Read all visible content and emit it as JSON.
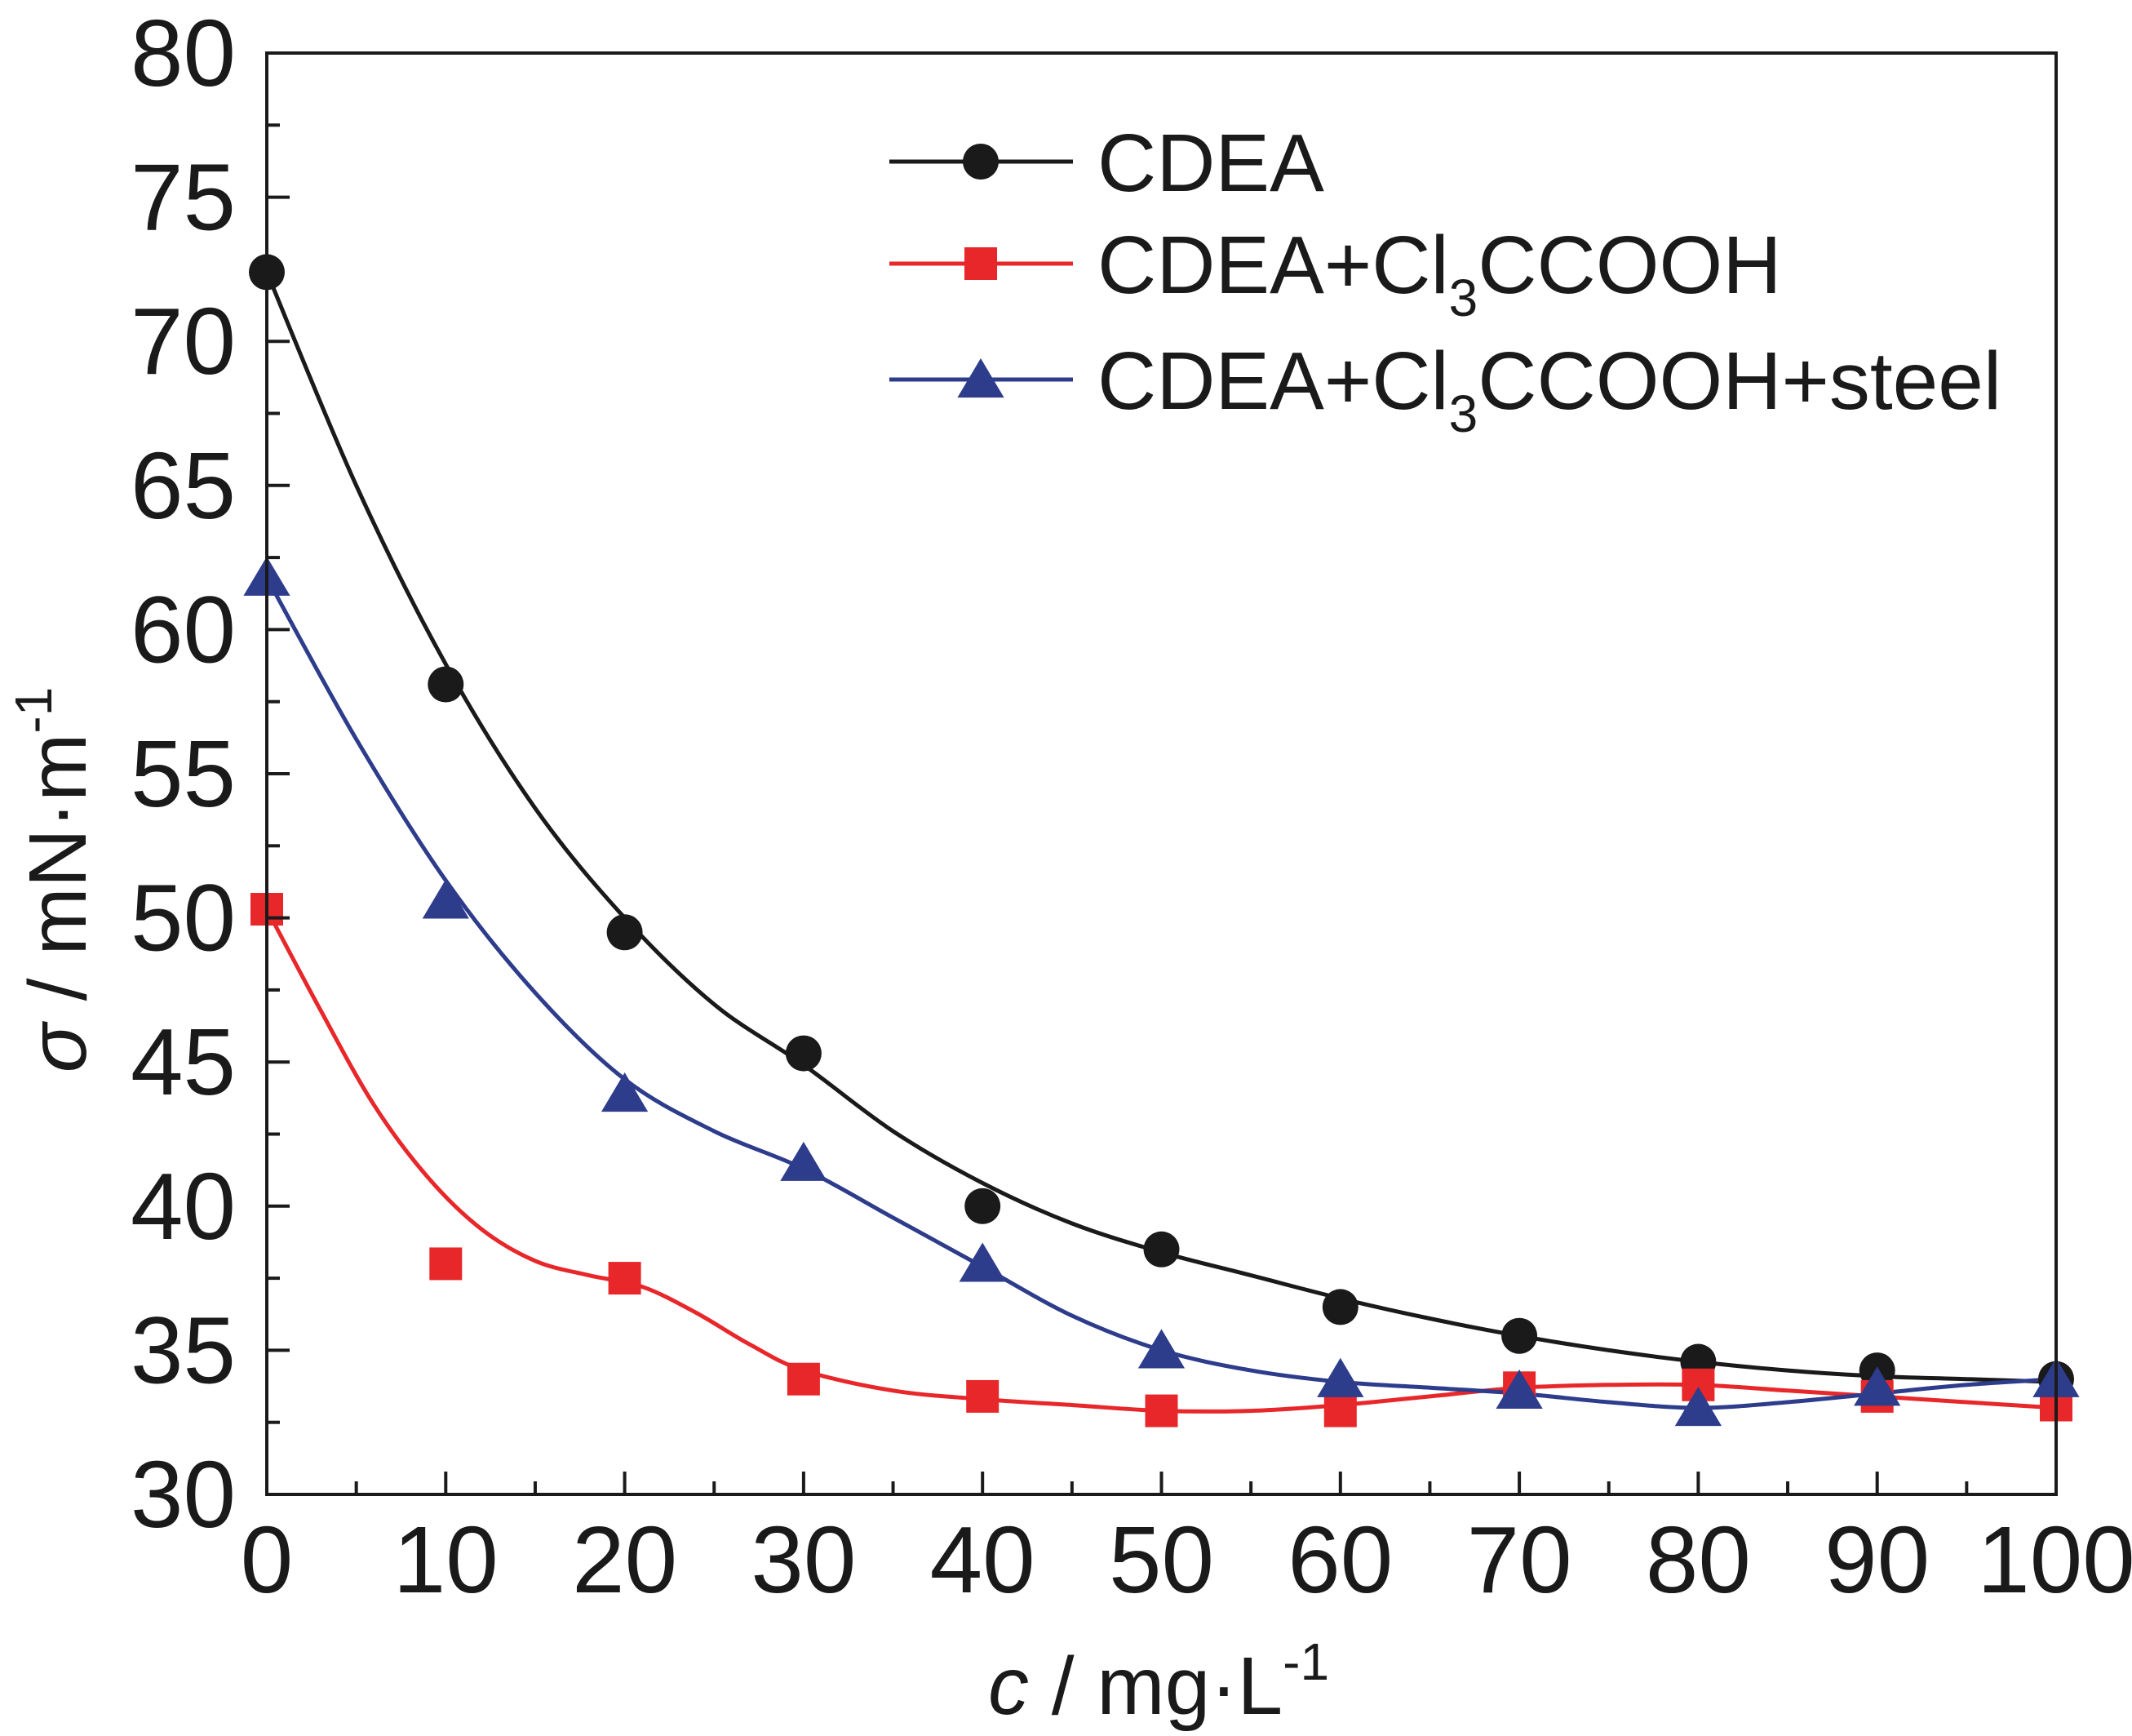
{
  "chart_data": {
    "type": "line",
    "xlabel": {
      "symbol": "c",
      "unit": " / mg·L",
      "exponent": "-1"
    },
    "ylabel": {
      "symbol": "σ",
      "unit": " / mN·m",
      "exponent": "-1"
    },
    "xlim": [
      0,
      100
    ],
    "ylim": [
      30,
      80
    ],
    "x_ticks": [
      0,
      10,
      20,
      30,
      40,
      50,
      60,
      70,
      80,
      90,
      100
    ],
    "y_ticks": [
      30,
      35,
      40,
      45,
      50,
      55,
      60,
      65,
      70,
      75,
      80
    ],
    "x": [
      0,
      10,
      20,
      30,
      40,
      50,
      60,
      70,
      80,
      90,
      100
    ],
    "series": [
      {
        "name": "CDEA",
        "legend": {
          "base": "CDEA",
          "sub": "",
          "tail": ""
        },
        "color": "#1a1a1a",
        "marker": "circle",
        "values": [
          72.4,
          58.1,
          49.5,
          45.3,
          40.0,
          38.5,
          36.5,
          35.5,
          34.6,
          34.3,
          34.0
        ],
        "fit": [
          [
            0,
            72.4
          ],
          [
            5,
            65.0
          ],
          [
            10,
            58.8
          ],
          [
            15,
            53.8
          ],
          [
            20,
            50.0
          ],
          [
            25,
            47.0
          ],
          [
            30,
            44.9
          ],
          [
            35,
            42.6
          ],
          [
            40,
            40.8
          ],
          [
            45,
            39.4
          ],
          [
            50,
            38.4
          ],
          [
            55,
            37.6
          ],
          [
            60,
            36.8
          ],
          [
            65,
            36.1
          ],
          [
            70,
            35.5
          ],
          [
            75,
            35.0
          ],
          [
            80,
            34.6
          ],
          [
            85,
            34.3
          ],
          [
            90,
            34.1
          ],
          [
            95,
            34.0
          ],
          [
            100,
            33.9
          ]
        ]
      },
      {
        "name": "CDEA+Cl3CCOOH",
        "legend": {
          "base": "CDEA+Cl",
          "sub": "3",
          "tail": "CCOOH"
        },
        "color": "#e8272a",
        "marker": "square",
        "values": [
          50.3,
          38.0,
          37.5,
          34.0,
          33.4,
          32.9,
          32.9,
          33.7,
          33.8,
          33.4,
          33.1
        ],
        "fit": [
          [
            0,
            50.3
          ],
          [
            3,
            46.8
          ],
          [
            6,
            43.5
          ],
          [
            9,
            41.0
          ],
          [
            12,
            39.2
          ],
          [
            15,
            38.1
          ],
          [
            18,
            37.6
          ],
          [
            21,
            37.2
          ],
          [
            24,
            36.3
          ],
          [
            27,
            35.2
          ],
          [
            30,
            34.3
          ],
          [
            35,
            33.6
          ],
          [
            40,
            33.3
          ],
          [
            45,
            33.1
          ],
          [
            50,
            32.9
          ],
          [
            55,
            32.9
          ],
          [
            60,
            33.1
          ],
          [
            65,
            33.4
          ],
          [
            70,
            33.7
          ],
          [
            75,
            33.8
          ],
          [
            80,
            33.8
          ],
          [
            85,
            33.6
          ],
          [
            90,
            33.4
          ],
          [
            95,
            33.2
          ],
          [
            100,
            33.0
          ]
        ]
      },
      {
        "name": "CDEA+Cl3CCOOH+steel",
        "legend": {
          "base": "CDEA+Cl",
          "sub": "3",
          "tail": "CCOOH+steel"
        },
        "color": "#2e3c8c",
        "marker": "triangle",
        "values": [
          61.8,
          50.6,
          43.9,
          41.5,
          38.0,
          35.0,
          34.0,
          33.6,
          33.0,
          33.7,
          34.0
        ],
        "fit": [
          [
            0,
            61.8
          ],
          [
            5,
            56.2
          ],
          [
            10,
            51.3
          ],
          [
            15,
            47.4
          ],
          [
            20,
            44.4
          ],
          [
            25,
            42.6
          ],
          [
            30,
            41.3
          ],
          [
            35,
            39.6
          ],
          [
            40,
            37.9
          ],
          [
            45,
            36.2
          ],
          [
            50,
            35.0
          ],
          [
            55,
            34.3
          ],
          [
            60,
            33.9
          ],
          [
            65,
            33.7
          ],
          [
            70,
            33.5
          ],
          [
            75,
            33.2
          ],
          [
            80,
            33.0
          ],
          [
            85,
            33.2
          ],
          [
            90,
            33.5
          ],
          [
            95,
            33.8
          ],
          [
            100,
            34.0
          ]
        ]
      }
    ],
    "legend_position": "top-right",
    "grid": false
  }
}
